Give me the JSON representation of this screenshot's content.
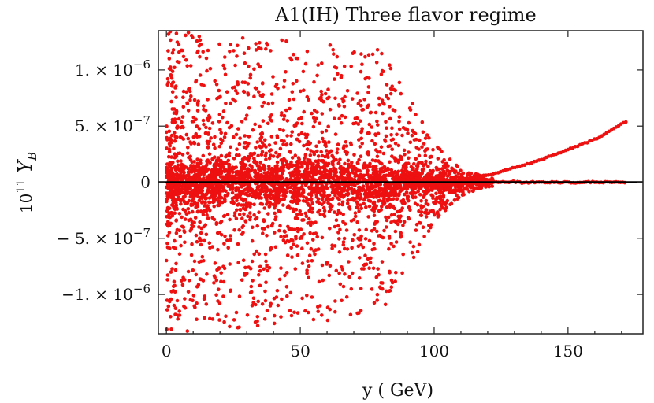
{
  "chart_data": {
    "type": "scatter",
    "title": "A1(IH) Three flavor regime",
    "xlabel": "y ( GeV)",
    "ylabel_base": "10",
    "ylabel_exp": "11",
    "ylabel_var": "Y",
    "ylabel_sub": "B",
    "xlim": [
      -3,
      178
    ],
    "ylim": [
      -1.35e-06,
      1.35e-06
    ],
    "x_ticks": [
      {
        "value": 0,
        "label": "0"
      },
      {
        "value": 50,
        "label": "50"
      },
      {
        "value": 100,
        "label": "100"
      },
      {
        "value": 150,
        "label": "150"
      }
    ],
    "y_ticks": [
      {
        "value": 1e-06,
        "label": "1. × 10",
        "exp": "−6"
      },
      {
        "value": 5e-07,
        "label": "5. × 10",
        "exp": "−7"
      },
      {
        "value": 0,
        "label": "0",
        "exp": ""
      },
      {
        "value": -5e-07,
        "label": "− 5. × 10",
        "exp": "−7"
      },
      {
        "value": -1e-06,
        "label": "−1. × 10",
        "exp": "−6"
      }
    ],
    "horizontal_line": 0,
    "point_color": "#ee1111",
    "series": [
      {
        "description": "scatter cloud; envelope shrinks with y and vanishes near 110 GeV",
        "envelope": [
          [
            0,
            1.35e-06
          ],
          [
            80,
            1.2e-06
          ],
          [
            90,
            8e-07
          ],
          [
            100,
            3.5e-07
          ],
          [
            110,
            1.2e-07
          ],
          [
            120,
            4e-08
          ]
        ],
        "count": 4200
      },
      {
        "description": "upper branch rising with y",
        "x_start": 105,
        "x_end": 172,
        "y_at": [
          [
            105,
            1e-08
          ],
          [
            120,
            6e-08
          ],
          [
            140,
            2e-07
          ],
          [
            160,
            3.8e-07
          ],
          [
            172,
            5.45e-07
          ]
        ]
      },
      {
        "description": "branch at zero",
        "x_start": 100,
        "x_end": 172,
        "y": 0
      }
    ]
  }
}
